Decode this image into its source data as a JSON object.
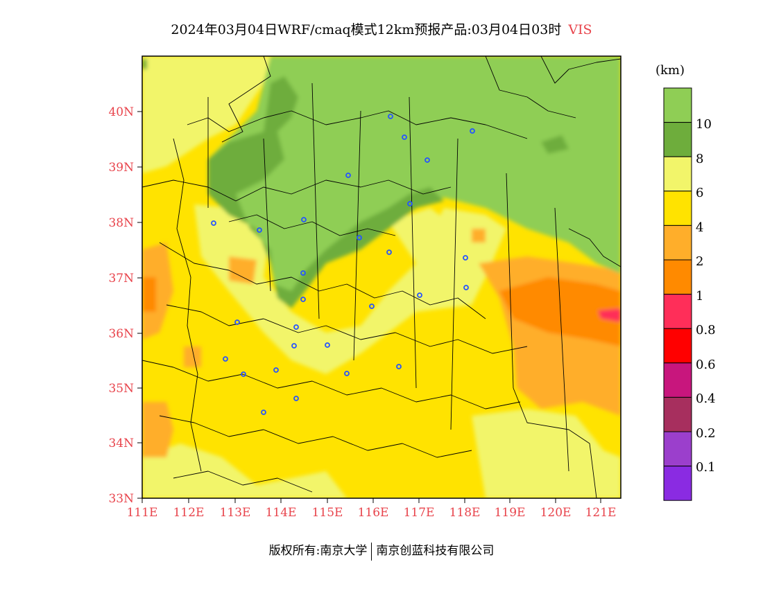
{
  "title": {
    "text": "2024年03月04日WRF/cmaq模式12km预报产品:03月04日03时",
    "variable": "VIS"
  },
  "map": {
    "lat_ticks": [
      "40N",
      "39N",
      "38N",
      "37N",
      "36N",
      "35N",
      "34N",
      "33N"
    ],
    "lon_ticks": [
      "111E",
      "112E",
      "113E",
      "114E",
      "115E",
      "116E",
      "117E",
      "118E",
      "119E",
      "120E",
      "121E"
    ]
  },
  "colorbar": {
    "unit": "(km)",
    "labels": [
      "10",
      "8",
      "6",
      "4",
      "2",
      "1",
      "0.8",
      "0.6",
      "0.4",
      "0.2",
      "0.1"
    ],
    "colors": [
      "#8fce55",
      "#6ead3c",
      "#f2f56a",
      "#ffe300",
      "#ffae2a",
      "#ff8a00",
      "#ff2e59",
      "#ff0000",
      "#c8167d",
      "#a72f5e",
      "#9b3fcc",
      "#8a2be2"
    ]
  },
  "footer": {
    "left": "版权所有:南京大学",
    "right": "南京创蓝科技有限公司"
  }
}
